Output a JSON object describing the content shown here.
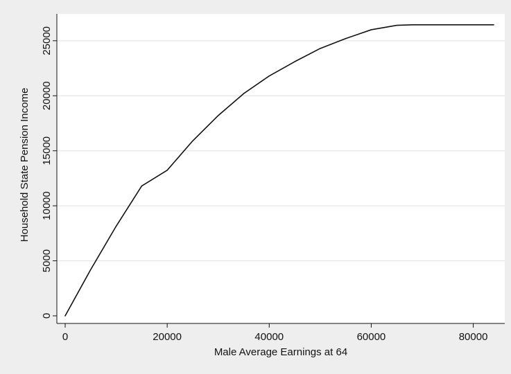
{
  "chart_data": {
    "type": "line",
    "title": "",
    "xlabel": "Male Average Earnings at 64",
    "ylabel": "Household State Pension Income",
    "xlim": [
      0,
      84000
    ],
    "ylim": [
      0,
      26500
    ],
    "x_ticks": [
      0,
      20000,
      40000,
      60000,
      80000
    ],
    "y_ticks": [
      0,
      5000,
      10000,
      15000,
      20000,
      25000
    ],
    "x_tick_labels": [
      "0",
      "20000",
      "40000",
      "60000",
      "80000"
    ],
    "y_tick_labels": [
      "0",
      "5000",
      "10000",
      "15000",
      "20000",
      "25000"
    ],
    "grid": true,
    "grid_axis": "y",
    "legend": "none",
    "colors": {
      "background": "#eeeeee",
      "plot_area": "#ffffff",
      "line": "#111111",
      "grid": "#e0e0e0",
      "axis": "#111111"
    },
    "series": [
      {
        "name": "",
        "x": [
          0,
          5000,
          10000,
          15000,
          20000,
          25000,
          30000,
          35000,
          40000,
          45000,
          50000,
          55000,
          60000,
          65000,
          68000,
          70000,
          75000,
          80000,
          84000
        ],
        "y": [
          0,
          4200,
          8150,
          11800,
          13230,
          15900,
          18200,
          20200,
          21800,
          23100,
          24300,
          25200,
          26000,
          26400,
          26450,
          26450,
          26450,
          26450,
          26450
        ]
      }
    ]
  }
}
